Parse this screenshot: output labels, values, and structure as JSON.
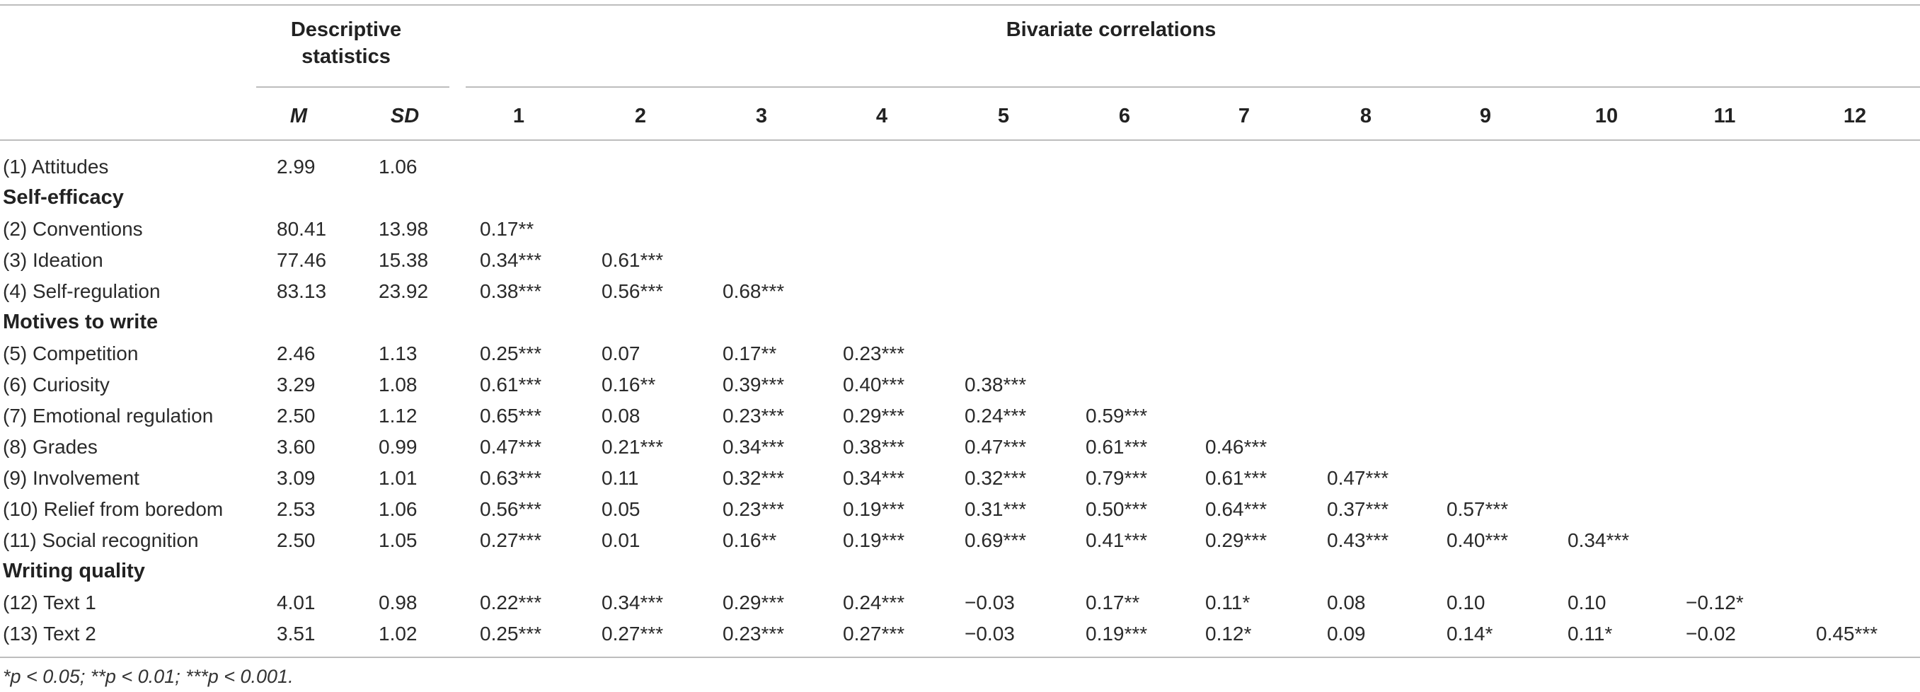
{
  "table": {
    "group_headers": {
      "descriptive_line1": "Descriptive",
      "descriptive_line2": "statistics",
      "correlations": "Bivariate correlations"
    },
    "subheaders": {
      "m": "M",
      "sd": "SD",
      "cols": [
        "1",
        "2",
        "3",
        "4",
        "5",
        "6",
        "7",
        "8",
        "9",
        "10",
        "11",
        "12"
      ]
    },
    "rows": [
      {
        "type": "row",
        "label": "(1) Attitudes",
        "m": "2.99",
        "sd": "1.06",
        "r": []
      },
      {
        "type": "section",
        "label": "Self-efficacy"
      },
      {
        "type": "row",
        "label": "(2) Conventions",
        "m": "80.41",
        "sd": "13.98",
        "r": [
          "0.17**"
        ]
      },
      {
        "type": "row",
        "label": "(3) Ideation",
        "m": "77.46",
        "sd": "15.38",
        "r": [
          "0.34***",
          "0.61***"
        ]
      },
      {
        "type": "row",
        "label": "(4) Self-regulation",
        "m": "83.13",
        "sd": "23.92",
        "r": [
          "0.38***",
          "0.56***",
          "0.68***"
        ]
      },
      {
        "type": "section",
        "label": "Motives to write"
      },
      {
        "type": "row",
        "label": "(5) Competition",
        "m": "2.46",
        "sd": "1.13",
        "r": [
          "0.25***",
          "0.07",
          "0.17**",
          "0.23***"
        ]
      },
      {
        "type": "row",
        "label": "(6) Curiosity",
        "m": "3.29",
        "sd": "1.08",
        "r": [
          "0.61***",
          "0.16**",
          "0.39***",
          "0.40***",
          "0.38***"
        ]
      },
      {
        "type": "row",
        "label": "(7) Emotional regulation",
        "m": "2.50",
        "sd": "1.12",
        "r": [
          "0.65***",
          "0.08",
          "0.23***",
          "0.29***",
          "0.24***",
          "0.59***"
        ]
      },
      {
        "type": "row",
        "label": "(8) Grades",
        "m": "3.60",
        "sd": "0.99",
        "r": [
          "0.47***",
          "0.21***",
          "0.34***",
          "0.38***",
          "0.47***",
          "0.61***",
          "0.46***"
        ]
      },
      {
        "type": "row",
        "label": "(9) Involvement",
        "m": "3.09",
        "sd": "1.01",
        "r": [
          "0.63***",
          "0.11",
          "0.32***",
          "0.34***",
          "0.32***",
          "0.79***",
          "0.61***",
          "0.47***"
        ]
      },
      {
        "type": "row",
        "label": "(10) Relief from boredom",
        "m": "2.53",
        "sd": "1.06",
        "r": [
          "0.56***",
          "0.05",
          "0.23***",
          "0.19***",
          "0.31***",
          "0.50***",
          "0.64***",
          "0.37***",
          "0.57***"
        ]
      },
      {
        "type": "row",
        "label": "(11) Social recognition",
        "m": "2.50",
        "sd": "1.05",
        "r": [
          "0.27***",
          "0.01",
          "0.16**",
          "0.19***",
          "0.69***",
          "0.41***",
          "0.29***",
          "0.43***",
          "0.40***",
          "0.34***"
        ]
      },
      {
        "type": "section",
        "label": "Writing quality"
      },
      {
        "type": "row",
        "label": "(12) Text 1",
        "m": "4.01",
        "sd": "0.98",
        "r": [
          "0.22***",
          "0.34***",
          "0.29***",
          "0.24***",
          "−0.03",
          "0.17**",
          "0.11*",
          "0.08",
          "0.10",
          "0.10",
          "−0.12*"
        ]
      },
      {
        "type": "row",
        "label": "(13) Text 2",
        "m": "3.51",
        "sd": "1.02",
        "r": [
          "0.25***",
          "0.27***",
          "0.23***",
          "0.27***",
          "−0.03",
          "0.19***",
          "0.12*",
          "0.09",
          "0.14*",
          "0.11*",
          "−0.02",
          "0.45***"
        ]
      }
    ],
    "footnote": "*p < 0.05; **p < 0.01; ***p < 0.001."
  }
}
